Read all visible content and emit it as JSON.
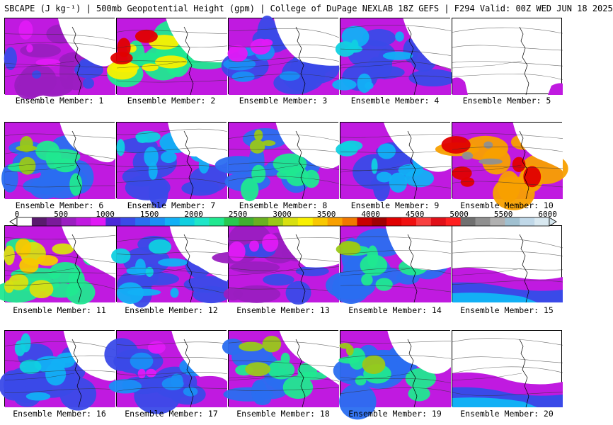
{
  "title": "SBCAPE (J kg⁻¹) | 500mb Geopotential Height (gpm) | College of DuPage NEXLAB 18Z GEFS | F294 Valid: 00Z WED JUN 18 2025",
  "colorbar": {
    "ticks": [
      "0",
      "500",
      "1000",
      "1500",
      "2000",
      "2500",
      "3000",
      "3500",
      "4000",
      "4500",
      "5000",
      "5500",
      "6000"
    ],
    "colors": [
      "#ffffff",
      "#5a1a6e",
      "#7a1a9a",
      "#9a1ec0",
      "#c01ae0",
      "#e01af5",
      "#4a2ad8",
      "#3a4ae8",
      "#2a6ef0",
      "#1a8ef5",
      "#12b0f5",
      "#10d0e0",
      "#1ee6c8",
      "#20e890",
      "#28c850",
      "#40b030",
      "#6ab020",
      "#9ac818",
      "#d8e010",
      "#f8f000",
      "#f8c800",
      "#f8a000",
      "#f07800",
      "#c80000",
      "#a00000",
      "#e00000",
      "#f01010",
      "#f84040",
      "#e01018",
      "#ff2020",
      "#707070",
      "#909090",
      "#b0b0b0",
      "#a0c0d0",
      "#c0d8e8",
      "#d8e8f0"
    ]
  },
  "panels": [
    {
      "label": "Ensemble Member: 1",
      "mode": "purple"
    },
    {
      "label": "Ensemble Member: 2",
      "mode": "hot"
    },
    {
      "label": "Ensemble Member: 3",
      "mode": "purple-west"
    },
    {
      "label": "Ensemble Member: 4",
      "mode": "blue"
    },
    {
      "label": "Ensemble Member: 5",
      "mode": "empty"
    },
    {
      "label": "Ensemble Member: 6",
      "mode": "green"
    },
    {
      "label": "Ensemble Member: 7",
      "mode": "blue"
    },
    {
      "label": "Ensemble Member: 8",
      "mode": "green"
    },
    {
      "label": "Ensemble Member: 9",
      "mode": "blue"
    },
    {
      "label": "Ensemble Member: 10",
      "mode": "extreme"
    },
    {
      "label": "Ensemble Member: 11",
      "mode": "green-west"
    },
    {
      "label": "Ensemble Member: 12",
      "mode": "blue"
    },
    {
      "label": "Ensemble Member: 13",
      "mode": "purple"
    },
    {
      "label": "Ensemble Member: 14",
      "mode": "green"
    },
    {
      "label": "Ensemble Member: 15",
      "mode": "south"
    },
    {
      "label": "Ensemble Member: 16",
      "mode": "blue"
    },
    {
      "label": "Ensemble Member: 17",
      "mode": "purple-west"
    },
    {
      "label": "Ensemble Member: 18",
      "mode": "green"
    },
    {
      "label": "Ensemble Member: 19",
      "mode": "green"
    },
    {
      "label": "Ensemble Member: 20",
      "mode": "south"
    }
  ]
}
